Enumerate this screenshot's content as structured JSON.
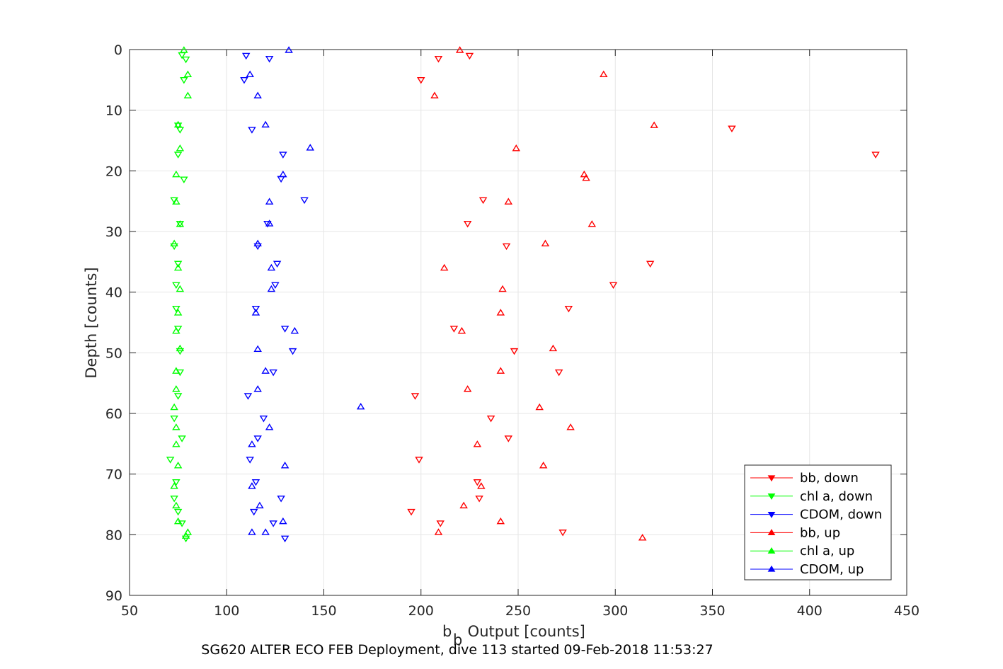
{
  "chart_data": {
    "type": "scatter",
    "caption": "SG620 ALTER ECO FEB Deployment, dive 113 started 09-Feb-2018 11:53:27",
    "xlabel_main": "b",
    "xlabel_sub": "b",
    "xlabel_rest": " Output [counts]",
    "ylabel": "Depth [counts]",
    "xlim": [
      50,
      450
    ],
    "ylim": [
      0,
      90
    ],
    "y_reversed": true,
    "grid": true,
    "x_ticks": [
      "50",
      "100",
      "150",
      "200",
      "250",
      "300",
      "350",
      "400",
      "450"
    ],
    "y_ticks": [
      "0",
      "10",
      "20",
      "30",
      "40",
      "50",
      "60",
      "70",
      "80",
      "90"
    ],
    "legend_position": "bottom-right",
    "series": [
      {
        "name": "bb, down",
        "color": "#ff0000",
        "marker": "triangle-down",
        "points": [
          [
            209,
            1.5
          ],
          [
            225,
            1
          ],
          [
            200,
            5
          ],
          [
            360,
            13
          ],
          [
            434,
            17.3
          ],
          [
            232,
            24.8
          ],
          [
            224,
            28.7
          ],
          [
            244,
            32.4
          ],
          [
            318,
            35.3
          ],
          [
            299,
            38.8
          ],
          [
            276,
            42.7
          ],
          [
            217,
            46
          ],
          [
            248,
            49.7
          ],
          [
            271,
            53.2
          ],
          [
            197,
            57.1
          ],
          [
            236,
            60.8
          ],
          [
            245,
            64.1
          ],
          [
            199,
            67.6
          ],
          [
            229,
            71.3
          ],
          [
            230,
            74
          ],
          [
            195,
            76.2
          ],
          [
            210,
            78.1
          ],
          [
            273,
            79.6
          ]
        ]
      },
      {
        "name": "chl a, down",
        "color": "#00ff00",
        "marker": "triangle-down",
        "points": [
          [
            77,
            0.9
          ],
          [
            79,
            1.6
          ],
          [
            78,
            5
          ],
          [
            75,
            12.5
          ],
          [
            76,
            13.2
          ],
          [
            75,
            17.3
          ],
          [
            78,
            21.4
          ],
          [
            73,
            24.8
          ],
          [
            76,
            28.7
          ],
          [
            73,
            32.4
          ],
          [
            75,
            35.3
          ],
          [
            74,
            38.8
          ],
          [
            74,
            42.7
          ],
          [
            75,
            46
          ],
          [
            76,
            49.7
          ],
          [
            76,
            53.2
          ],
          [
            75,
            57.1
          ],
          [
            73,
            60.8
          ],
          [
            77,
            64.1
          ],
          [
            71,
            67.6
          ],
          [
            74,
            71.3
          ],
          [
            73,
            74
          ],
          [
            75,
            76.2
          ],
          [
            77,
            78.1
          ],
          [
            79,
            80.6
          ]
        ]
      },
      {
        "name": "CDOM, down",
        "color": "#0000ff",
        "marker": "triangle-down",
        "points": [
          [
            110,
            1
          ],
          [
            122,
            1.5
          ],
          [
            109,
            5
          ],
          [
            113,
            13.2
          ],
          [
            129,
            17.3
          ],
          [
            128,
            21.3
          ],
          [
            140,
            24.8
          ],
          [
            121,
            28.7
          ],
          [
            116,
            32.4
          ],
          [
            126,
            35.3
          ],
          [
            125,
            38.8
          ],
          [
            115,
            42.7
          ],
          [
            130,
            46
          ],
          [
            134,
            49.7
          ],
          [
            124,
            53.2
          ],
          [
            111,
            57.1
          ],
          [
            119,
            60.8
          ],
          [
            116,
            64.1
          ],
          [
            112,
            67.6
          ],
          [
            115,
            71.3
          ],
          [
            128,
            74
          ],
          [
            114,
            76.2
          ],
          [
            124,
            78.1
          ],
          [
            130,
            80.6
          ]
        ]
      },
      {
        "name": "bb, up",
        "color": "#ff0000",
        "marker": "triangle-up",
        "points": [
          [
            220,
            0.1
          ],
          [
            294,
            4.1
          ],
          [
            207,
            7.6
          ],
          [
            320,
            12.5
          ],
          [
            249,
            16.3
          ],
          [
            284,
            20.6
          ],
          [
            285,
            21.2
          ],
          [
            245,
            25.1
          ],
          [
            288,
            28.8
          ],
          [
            264,
            32
          ],
          [
            212,
            36
          ],
          [
            242,
            39.5
          ],
          [
            241,
            43.4
          ],
          [
            221,
            46.4
          ],
          [
            268,
            49.3
          ],
          [
            241,
            53
          ],
          [
            224,
            56
          ],
          [
            261,
            59
          ],
          [
            277,
            62.3
          ],
          [
            229,
            65.1
          ],
          [
            263,
            68.6
          ],
          [
            231,
            72
          ],
          [
            222,
            75.2
          ],
          [
            241,
            77.8
          ],
          [
            209,
            79.6
          ],
          [
            314,
            80.5
          ]
        ]
      },
      {
        "name": "chl a, up",
        "color": "#00ff00",
        "marker": "triangle-up",
        "points": [
          [
            78,
            0.1
          ],
          [
            80,
            4.1
          ],
          [
            80,
            7.6
          ],
          [
            75,
            12.4
          ],
          [
            76,
            16.3
          ],
          [
            74,
            20.6
          ],
          [
            74,
            25.1
          ],
          [
            76,
            28.8
          ],
          [
            73,
            32
          ],
          [
            75,
            36
          ],
          [
            76,
            39.5
          ],
          [
            75,
            43.4
          ],
          [
            74,
            46.4
          ],
          [
            76,
            49.3
          ],
          [
            74,
            53
          ],
          [
            74,
            56
          ],
          [
            73,
            59
          ],
          [
            74,
            62.3
          ],
          [
            74,
            65.1
          ],
          [
            75,
            68.6
          ],
          [
            73,
            72
          ],
          [
            74,
            75.2
          ],
          [
            75,
            77.8
          ],
          [
            80,
            79.6
          ],
          [
            79,
            80.2
          ]
        ]
      },
      {
        "name": "CDOM, up",
        "color": "#0000ff",
        "marker": "triangle-up",
        "points": [
          [
            132,
            0.1
          ],
          [
            112,
            4.1
          ],
          [
            116,
            7.6
          ],
          [
            120,
            12.4
          ],
          [
            143,
            16.2
          ],
          [
            129,
            20.6
          ],
          [
            122,
            25.1
          ],
          [
            122,
            28.7
          ],
          [
            116,
            32
          ],
          [
            123,
            36
          ],
          [
            123,
            39.5
          ],
          [
            115,
            43.4
          ],
          [
            135,
            46.4
          ],
          [
            116,
            49.4
          ],
          [
            120,
            53
          ],
          [
            116,
            56
          ],
          [
            169,
            58.9
          ],
          [
            122,
            62.3
          ],
          [
            113,
            65.1
          ],
          [
            130,
            68.6
          ],
          [
            113,
            72
          ],
          [
            117,
            75.2
          ],
          [
            129,
            77.8
          ],
          [
            113,
            79.6
          ],
          [
            120,
            79.6
          ]
        ]
      }
    ]
  }
}
